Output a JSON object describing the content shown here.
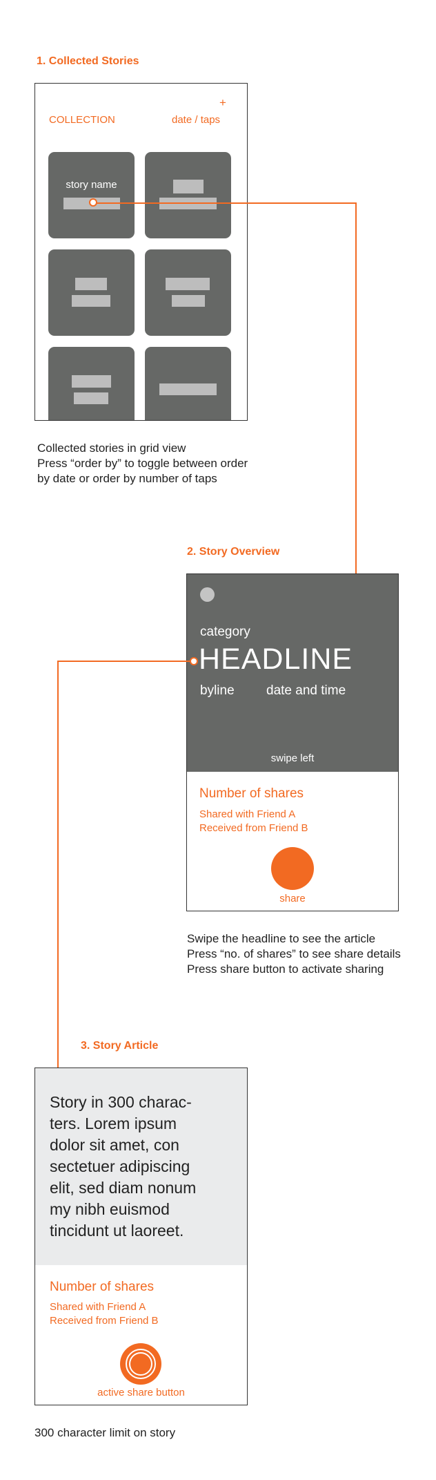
{
  "colors": {
    "accent": "#f26a22",
    "tile": "#666866",
    "placeholder": "#bdbdbd",
    "article_bg": "#eaebec"
  },
  "section1": {
    "title": "1. Collected Stories",
    "header_left": "COLLECTION",
    "header_plus": "+",
    "header_right": "date / taps",
    "tile_label": "story name",
    "caption": "Collected stories in grid view\nPress “order by” to toggle between order\nby date or order by number of taps"
  },
  "section2": {
    "title": "2. Story Overview",
    "category": "category",
    "headline": "HEADLINE",
    "byline": "byline",
    "datetime": "date and time",
    "swipe": "swipe left",
    "shares_title": "Number of shares",
    "shared_with": "Shared with Friend A",
    "received_from": "Received from Friend B",
    "share_label": "share",
    "caption": "Swipe the headline to see the article\nPress “no. of shares” to see share details\nPress share button to activate sharing"
  },
  "section3": {
    "title": "3. Story Article",
    "story": "Story in 300 charac-\nters. Lorem ipsum\ndolor sit amet, con\nsectetuer adipiscing\nelit, sed diam nonum\nmy nibh euismod\ntincidunt ut laoreet.",
    "shares_title": "Number of shares",
    "shared_with": "Shared with Friend A",
    "received_from": "Received from Friend B",
    "active_share_label": "active share button",
    "caption": "300 character limit on story"
  }
}
